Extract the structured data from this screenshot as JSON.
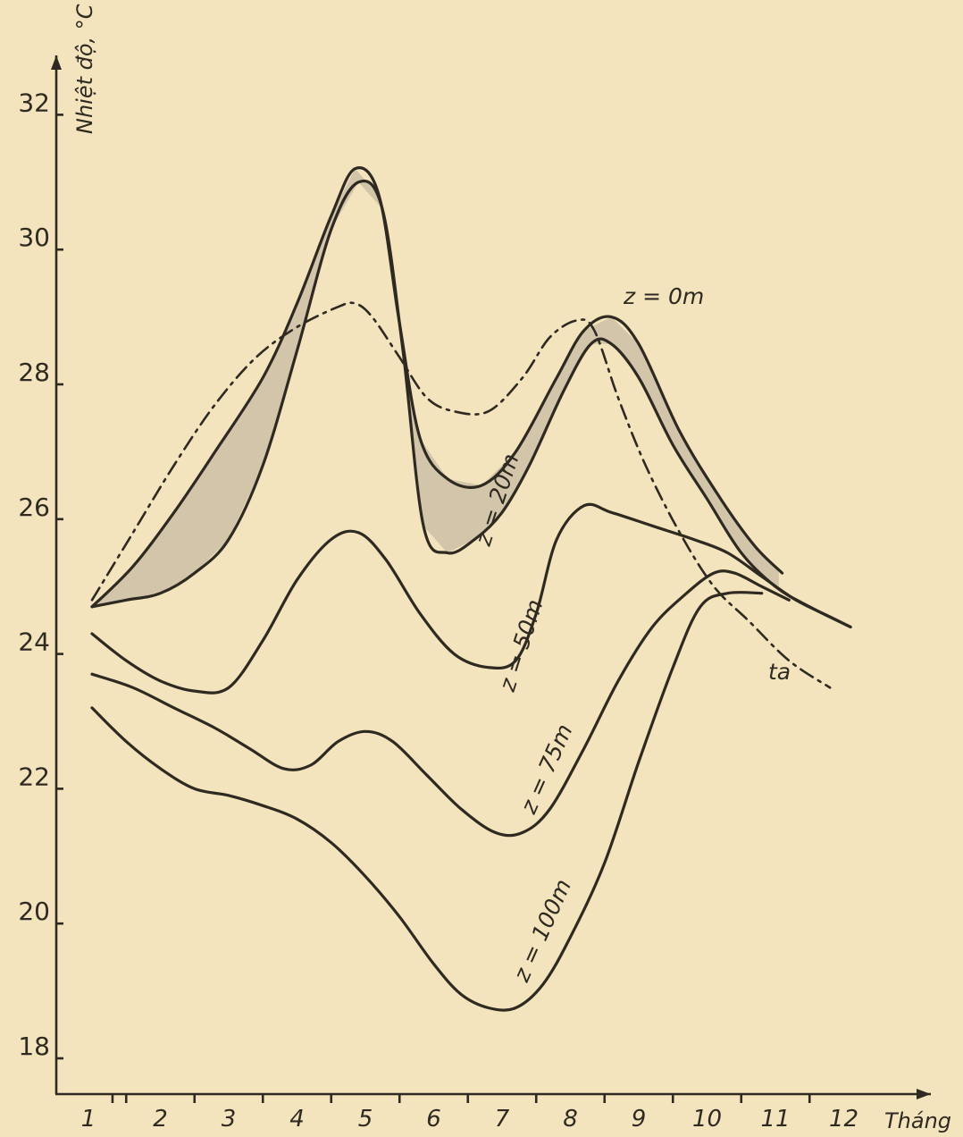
{
  "chart_data": {
    "type": "line",
    "title": "",
    "ylabel": "Nhiệt độ, °C",
    "xlabel": "Tháng",
    "xlim": [
      0.6,
      12.5
    ],
    "ylim": [
      17.2,
      33.0
    ],
    "x_ticks": [
      "1",
      "2",
      "3",
      "4",
      "5",
      "6",
      "7",
      "8",
      "9",
      "10",
      "11",
      "12"
    ],
    "y_ticks": [
      "18",
      "20",
      "22",
      "24",
      "26",
      "28",
      "30",
      "32"
    ],
    "grid": false,
    "legend": "none (curves labelled inline)",
    "series": [
      {
        "name": "z = 0m",
        "style": "solid",
        "points": [
          [
            1.0,
            24.7
          ],
          [
            1.6,
            25.3
          ],
          [
            2.2,
            26.1
          ],
          [
            2.8,
            27.0
          ],
          [
            3.5,
            28.1
          ],
          [
            4.0,
            29.2
          ],
          [
            4.5,
            30.5
          ],
          [
            4.85,
            31.2
          ],
          [
            5.2,
            30.8
          ],
          [
            5.5,
            28.9
          ],
          [
            5.8,
            27.2
          ],
          [
            6.2,
            26.6
          ],
          [
            6.7,
            26.5
          ],
          [
            7.2,
            27.0
          ],
          [
            7.8,
            28.1
          ],
          [
            8.2,
            28.8
          ],
          [
            8.6,
            29.0
          ],
          [
            9.0,
            28.6
          ],
          [
            9.6,
            27.3
          ],
          [
            10.2,
            26.3
          ],
          [
            10.7,
            25.6
          ],
          [
            11.1,
            25.2
          ]
        ]
      },
      {
        "name": "z = 20m",
        "style": "solid",
        "points": [
          [
            1.0,
            24.7
          ],
          [
            1.5,
            24.8
          ],
          [
            2.0,
            24.9
          ],
          [
            2.5,
            25.2
          ],
          [
            3.0,
            25.7
          ],
          [
            3.5,
            26.8
          ],
          [
            4.0,
            28.5
          ],
          [
            4.5,
            30.3
          ],
          [
            4.9,
            31.0
          ],
          [
            5.25,
            30.6
          ],
          [
            5.55,
            28.5
          ],
          [
            5.85,
            25.9
          ],
          [
            6.2,
            25.5
          ],
          [
            6.6,
            25.7
          ],
          [
            7.0,
            26.1
          ],
          [
            7.4,
            26.8
          ],
          [
            7.9,
            27.9
          ],
          [
            8.3,
            28.6
          ],
          [
            8.6,
            28.6
          ],
          [
            9.0,
            28.1
          ],
          [
            9.5,
            27.1
          ],
          [
            10.0,
            26.3
          ],
          [
            10.5,
            25.5
          ],
          [
            11.0,
            25.0
          ],
          [
            11.5,
            24.7
          ],
          [
            12.1,
            24.4
          ]
        ]
      },
      {
        "name": "z = 50m",
        "style": "solid",
        "points": [
          [
            1.0,
            24.3
          ],
          [
            1.5,
            23.9
          ],
          [
            2.0,
            23.6
          ],
          [
            2.5,
            23.45
          ],
          [
            3.0,
            23.5
          ],
          [
            3.5,
            24.2
          ],
          [
            4.0,
            25.1
          ],
          [
            4.5,
            25.7
          ],
          [
            4.9,
            25.8
          ],
          [
            5.3,
            25.4
          ],
          [
            5.8,
            24.6
          ],
          [
            6.3,
            24.0
          ],
          [
            6.8,
            23.8
          ],
          [
            7.2,
            23.9
          ],
          [
            7.5,
            24.6
          ],
          [
            7.8,
            25.7
          ],
          [
            8.2,
            26.2
          ],
          [
            8.6,
            26.1
          ],
          [
            9.2,
            25.9
          ],
          [
            9.8,
            25.7
          ],
          [
            10.3,
            25.5
          ],
          [
            10.8,
            25.15
          ],
          [
            11.3,
            24.8
          ],
          [
            11.8,
            24.55
          ],
          [
            12.1,
            24.4
          ]
        ]
      },
      {
        "name": "z = 75m",
        "style": "solid",
        "points": [
          [
            1.0,
            23.7
          ],
          [
            1.6,
            23.5
          ],
          [
            2.2,
            23.2
          ],
          [
            2.8,
            22.9
          ],
          [
            3.3,
            22.6
          ],
          [
            3.8,
            22.3
          ],
          [
            4.2,
            22.35
          ],
          [
            4.6,
            22.7
          ],
          [
            5.0,
            22.85
          ],
          [
            5.4,
            22.7
          ],
          [
            5.9,
            22.2
          ],
          [
            6.4,
            21.7
          ],
          [
            6.9,
            21.35
          ],
          [
            7.3,
            21.35
          ],
          [
            7.7,
            21.7
          ],
          [
            8.2,
            22.6
          ],
          [
            8.7,
            23.6
          ],
          [
            9.2,
            24.4
          ],
          [
            9.7,
            24.9
          ],
          [
            10.1,
            25.2
          ],
          [
            10.4,
            25.2
          ],
          [
            10.8,
            25.0
          ],
          [
            11.2,
            24.8
          ]
        ]
      },
      {
        "name": "z = 100m",
        "style": "solid",
        "points": [
          [
            1.0,
            23.2
          ],
          [
            1.5,
            22.7
          ],
          [
            2.0,
            22.3
          ],
          [
            2.5,
            22.0
          ],
          [
            3.0,
            21.9
          ],
          [
            3.5,
            21.75
          ],
          [
            4.0,
            21.55
          ],
          [
            4.5,
            21.2
          ],
          [
            5.0,
            20.7
          ],
          [
            5.5,
            20.1
          ],
          [
            6.0,
            19.4
          ],
          [
            6.4,
            18.95
          ],
          [
            6.8,
            18.75
          ],
          [
            7.2,
            18.75
          ],
          [
            7.6,
            19.1
          ],
          [
            8.0,
            19.8
          ],
          [
            8.5,
            20.9
          ],
          [
            9.0,
            22.4
          ],
          [
            9.5,
            23.8
          ],
          [
            9.9,
            24.7
          ],
          [
            10.3,
            24.9
          ],
          [
            10.8,
            24.9
          ]
        ]
      },
      {
        "name": "ta",
        "style": "dash-dot",
        "points": [
          [
            1.0,
            24.8
          ],
          [
            1.6,
            25.8
          ],
          [
            2.2,
            26.8
          ],
          [
            2.8,
            27.7
          ],
          [
            3.4,
            28.4
          ],
          [
            4.0,
            28.85
          ],
          [
            4.6,
            29.15
          ],
          [
            4.85,
            29.2
          ],
          [
            5.1,
            29.0
          ],
          [
            5.5,
            28.4
          ],
          [
            5.9,
            27.8
          ],
          [
            6.3,
            27.6
          ],
          [
            6.8,
            27.6
          ],
          [
            7.3,
            28.1
          ],
          [
            7.7,
            28.7
          ],
          [
            8.1,
            28.95
          ],
          [
            8.35,
            28.8
          ],
          [
            8.7,
            27.8
          ],
          [
            9.1,
            26.8
          ],
          [
            9.6,
            25.8
          ],
          [
            10.1,
            25.0
          ],
          [
            10.6,
            24.5
          ],
          [
            11.2,
            23.9
          ],
          [
            11.8,
            23.5
          ]
        ]
      }
    ],
    "annotations": [
      {
        "text": "z = 0m",
        "series": "z = 0m"
      },
      {
        "text": "z = 20m",
        "series": "z = 20m"
      },
      {
        "text": "z = 50m",
        "series": "z = 50m"
      },
      {
        "text": "z = 75m",
        "series": "z = 75m"
      },
      {
        "text": "z = 100m",
        "series": "z = 100m"
      },
      {
        "text": "ta",
        "series": "ta"
      }
    ],
    "shaded_regions": "difference between z = 0m and z = 20m curves",
    "colors": {
      "background": "#f3e4bd",
      "ink": "#2e2a22",
      "shade": "#c7bba3"
    }
  }
}
